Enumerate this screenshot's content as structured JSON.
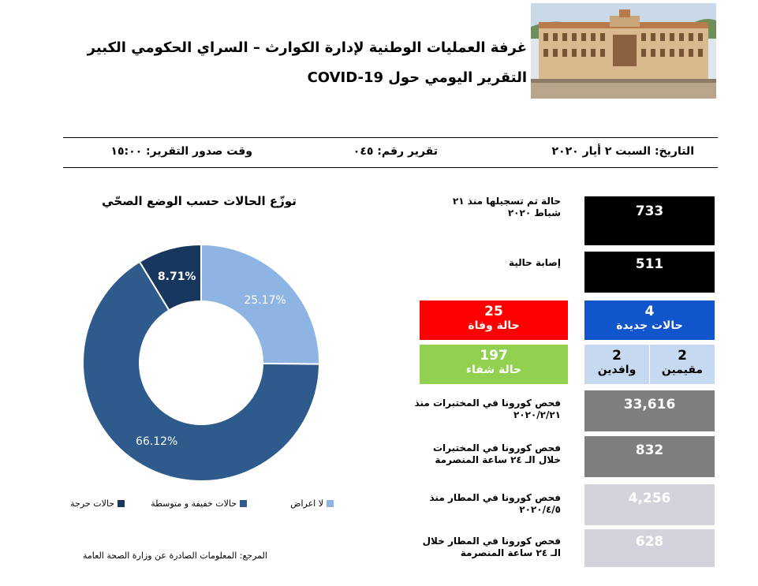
{
  "header": {
    "title_line1": "غرفة العمليات الوطنية لإدارة الكوارث – السراي الحكومي الكبير",
    "title_line2": "التقرير اليومي حول COVID-19"
  },
  "info": {
    "date": "التاريخ: السبت ٢ أيار ٢٠٢٠",
    "report_number": "تقرير رقم: ٠٤٥",
    "issue_time": "وقت صدور التقرير: ١٥:٠٠"
  },
  "chart_data": {
    "type": "pie",
    "title": "توزّع الحالات حسب الوضع الصحّي",
    "slices": [
      {
        "label": "لا اعراض",
        "value": 25.17,
        "display": "25.17%",
        "color": "#8eb4e3"
      },
      {
        "label": "حالات خفيفة و متوسطة",
        "value": 66.12,
        "display": "66.12%",
        "color": "#2e5a8c"
      },
      {
        "label": "حالات حرجة",
        "value": 8.71,
        "display": "8.71%",
        "color": "#17375e"
      }
    ]
  },
  "source": "المرجع: المعلومات الصادرة عن وزارة الصحة العامة",
  "stats": {
    "total_label": "حالة تم تسجيلها منذ ٢١ شباط ٢٠٢٠",
    "total_value": "733",
    "active_label": "إصابة حالية",
    "active_value": "511",
    "deaths_value": "25",
    "deaths_label": "حالة وفاة",
    "deaths_color": "#ff0000",
    "new_value": "4",
    "new_label": "حالات جديدة",
    "new_color": "#1155cc",
    "recovered_value": "197",
    "recovered_label": "حالة شفاء",
    "recovered_color": "#92d050",
    "residents_value": "2",
    "residents_label": "مقيمين",
    "arrivals_value": "2",
    "arrivals_label": "وافدين",
    "split_color": "#c6d9f1",
    "lab_total_label": "فحص كورونا في المختبرات منذ ٢٠٢٠/٢/٢١",
    "lab_total_value": "33,616",
    "lab_24h_label": "فحص كورونا في المختبرات خلال الـ ٢٤ ساعة المنصرمة",
    "lab_24h_value": "832",
    "airport_total_label": "فحص كورونا في المطار منذ ٢٠٢٠/٤/٥",
    "airport_total_value": "4,256",
    "airport_24h_label": "فحص كورونا في المطار خلال الـ ٢٤ ساعة المنصرمة",
    "airport_24h_value": "628"
  }
}
